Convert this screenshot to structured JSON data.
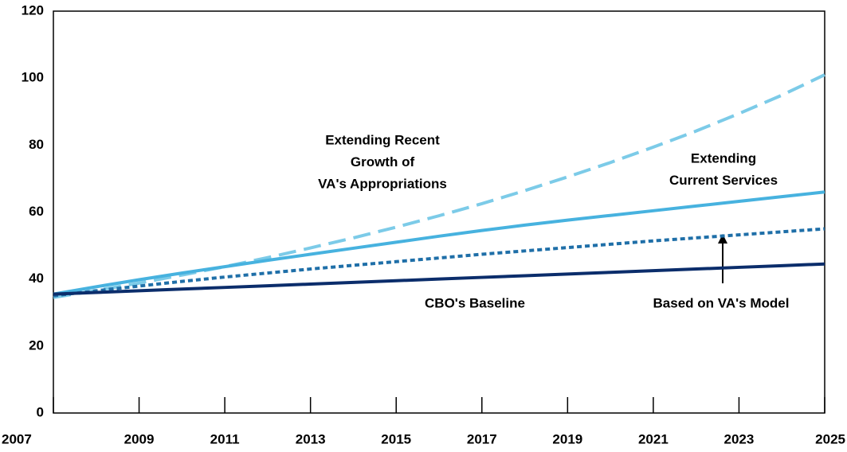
{
  "chart_data": {
    "type": "line",
    "x": [
      2007,
      2008,
      2009,
      2010,
      2011,
      2012,
      2013,
      2014,
      2015,
      2016,
      2017,
      2018,
      2019,
      2020,
      2021,
      2022,
      2023,
      2024,
      2025
    ],
    "series": [
      {
        "color": "#7ccbe8",
        "dash": "dashed",
        "values": [
          34.5,
          36.6,
          38.8,
          41.2,
          43.7,
          46.4,
          49.3,
          52.3,
          55.5,
          58.9,
          62.5,
          66.4,
          70.5,
          74.8,
          79.4,
          84.2,
          89.4,
          94.9,
          101
        ]
      },
      {
        "color": "#47b2df",
        "dash": "solid",
        "values": [
          35.5,
          37.7,
          39.8,
          41.8,
          43.7,
          45.6,
          47.4,
          49.2,
          51.0,
          52.8,
          54.5,
          56.1,
          57.6,
          59.0,
          60.4,
          61.8,
          63.2,
          64.6,
          66.0
        ]
      },
      {
        "color": "#1f6fa8",
        "dash": "dotted",
        "values": [
          35,
          36.5,
          37.9,
          39.3,
          40.6,
          41.8,
          43.0,
          44.1,
          45.2,
          46.3,
          47.4,
          48.4,
          49.4,
          50.4,
          51.4,
          52.3,
          53.2,
          54.1,
          55.0
        ]
      },
      {
        "color": "#0b2d6b",
        "dash": "solid",
        "values": [
          35.5,
          36,
          36.5,
          37,
          37.5,
          38,
          38.5,
          39,
          39.5,
          40,
          40.5,
          41,
          41.5,
          42,
          42.5,
          43,
          43.5,
          44,
          44.5
        ]
      }
    ],
    "annotations": [
      {
        "lines": [
          "Extending Recent",
          "Growth of",
          "VA's Appropriations"
        ]
      },
      {
        "lines": [
          "Extending",
          "Current Services"
        ]
      },
      {
        "lines": [
          "CBO's Baseline"
        ]
      },
      {
        "lines": [
          "Based on VA's Model"
        ]
      }
    ],
    "xlim": [
      2007,
      2025
    ],
    "xticks": [
      2007,
      2009,
      2011,
      2013,
      2015,
      2017,
      2019,
      2021,
      2023,
      2025
    ],
    "ylim": [
      0,
      120
    ],
    "yticks": [
      0,
      20,
      40,
      60,
      80,
      100,
      120
    ],
    "grid": false
  }
}
